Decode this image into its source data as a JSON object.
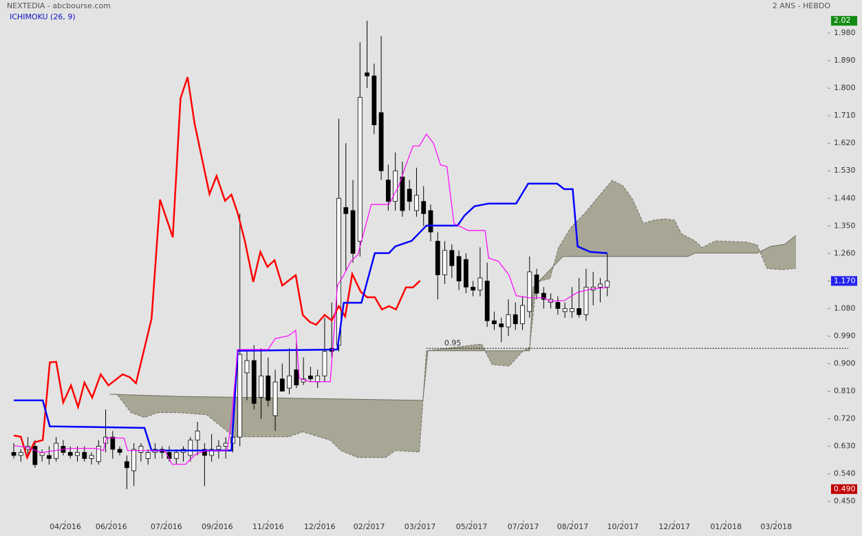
{
  "chart_data": {
    "type": "candlestick",
    "title": "NEXTEDIA - abcbourse.com",
    "subtitle": "ICHIMOKU (26, 9)",
    "period": "2 ANS - HEBDO",
    "xlim": [
      -1.95,
      114.4
    ],
    "ylim": [
      0.402,
      2.088
    ],
    "xticks": [
      {
        "value": 7.3,
        "label": "04/2016"
      },
      {
        "value": 13.8,
        "label": "06/2016"
      },
      {
        "value": 21.6,
        "label": "07/2016"
      },
      {
        "value": 28.8,
        "label": "09/2016"
      },
      {
        "value": 36.0,
        "label": "11/2016"
      },
      {
        "value": 43.3,
        "label": "12/2016"
      },
      {
        "value": 50.3,
        "label": "02/2017"
      },
      {
        "value": 57.5,
        "label": "03/2017"
      },
      {
        "value": 64.8,
        "label": "05/2017"
      },
      {
        "value": 72.1,
        "label": "07/2017"
      },
      {
        "value": 79.1,
        "label": "08/2017"
      },
      {
        "value": 86.2,
        "label": "10/2017"
      },
      {
        "value": 93.5,
        "label": "12/2017"
      },
      {
        "value": 100.8,
        "label": "01/2018"
      },
      {
        "value": 107.9,
        "label": "03/2018"
      }
    ],
    "yticks": [
      {
        "value": 0.45,
        "label": "0.450"
      },
      {
        "value": 0.54,
        "label": "0.540"
      },
      {
        "value": 0.63,
        "label": "0.630"
      },
      {
        "value": 0.72,
        "label": "0.720"
      },
      {
        "value": 0.81,
        "label": "0.810"
      },
      {
        "value": 0.9,
        "label": "0.900"
      },
      {
        "value": 0.99,
        "label": "0.990"
      },
      {
        "value": 1.08,
        "label": "1.080"
      },
      {
        "value": 1.17,
        "label": "1.170"
      },
      {
        "value": 1.26,
        "label": "1.260"
      },
      {
        "value": 1.35,
        "label": "1.350"
      },
      {
        "value": 1.44,
        "label": "1.440"
      },
      {
        "value": 1.53,
        "label": "1.530"
      },
      {
        "value": 1.62,
        "label": "1.620"
      },
      {
        "value": 1.71,
        "label": "1.710"
      },
      {
        "value": 1.8,
        "label": "1.800"
      },
      {
        "value": 1.89,
        "label": "1.890"
      },
      {
        "value": 1.98,
        "label": "1.980"
      }
    ],
    "price_markers": [
      {
        "value": 2.02,
        "label": "2.02",
        "color": "#138a13"
      },
      {
        "value": 1.17,
        "label": "1.170",
        "color": "#2222ee"
      },
      {
        "value": 0.49,
        "label": "0.490",
        "color": "#c00000"
      }
    ],
    "hline": {
      "value": 0.95,
      "label": "0.95",
      "from": 58.4
    },
    "candles": {
      "x": [
        0,
        1,
        2,
        3,
        4,
        5,
        6,
        7,
        8,
        9,
        10,
        11,
        12,
        13,
        14,
        15,
        16,
        17,
        18,
        19,
        20,
        21,
        22,
        23,
        24,
        25,
        26,
        27,
        28,
        29,
        30,
        31,
        32,
        33,
        34,
        35,
        36,
        37,
        38,
        39,
        40,
        41,
        42,
        43,
        44,
        45,
        46,
        47,
        48,
        49,
        50,
        51,
        52,
        53,
        54,
        55,
        56,
        57,
        58,
        59,
        60,
        61,
        62,
        63,
        64,
        65,
        66,
        67,
        68,
        69,
        70,
        71,
        72,
        73,
        74,
        75,
        76,
        77,
        78,
        79,
        80,
        81,
        82,
        83,
        84
      ],
      "open": [
        0.61,
        0.6,
        0.62,
        0.63,
        0.6,
        0.6,
        0.59,
        0.63,
        0.61,
        0.6,
        0.61,
        0.59,
        0.58,
        0.64,
        0.66,
        0.62,
        0.58,
        0.55,
        0.61,
        0.59,
        0.61,
        0.62,
        0.61,
        0.59,
        0.61,
        0.6,
        0.65,
        0.62,
        0.6,
        0.62,
        0.63,
        0.64,
        0.66,
        0.87,
        0.91,
        0.79,
        0.86,
        0.73,
        0.85,
        0.82,
        0.88,
        0.84,
        0.86,
        0.84,
        0.86,
        0.95,
        0.96,
        1.41,
        1.4,
        1.3,
        1.85,
        1.84,
        1.72,
        1.5,
        1.43,
        1.51,
        1.47,
        1.4,
        1.43,
        1.4,
        1.3,
        1.19,
        1.27,
        1.25,
        1.24,
        1.15,
        1.14,
        1.17,
        1.04,
        1.03,
        1.02,
        1.06,
        1.03,
        1.07,
        1.19,
        1.13,
        1.1,
        1.1,
        1.07,
        1.07,
        1.08,
        1.06,
        1.14,
        1.15,
        1.15
      ],
      "high": [
        0.64,
        0.62,
        0.66,
        0.65,
        0.62,
        0.63,
        0.66,
        0.65,
        0.63,
        0.63,
        0.63,
        0.61,
        0.65,
        0.75,
        0.68,
        0.63,
        0.6,
        0.64,
        0.64,
        0.62,
        0.64,
        0.63,
        0.63,
        0.62,
        0.63,
        0.66,
        0.71,
        0.64,
        0.67,
        0.65,
        0.66,
        0.68,
        1.39,
        0.94,
        0.96,
        0.95,
        0.92,
        0.88,
        0.9,
        0.95,
        0.97,
        0.92,
        0.89,
        0.88,
        1.05,
        1.1,
        1.7,
        1.62,
        1.5,
        1.95,
        2.02,
        1.88,
        1.97,
        1.55,
        1.59,
        1.56,
        1.5,
        1.54,
        1.48,
        1.42,
        1.33,
        1.3,
        1.29,
        1.27,
        1.26,
        1.17,
        1.28,
        1.23,
        1.07,
        1.05,
        1.11,
        1.1,
        1.12,
        1.25,
        1.21,
        1.15,
        1.13,
        1.12,
        1.1,
        1.15,
        1.18,
        1.21,
        1.2,
        1.18,
        1.26
      ],
      "low": [
        0.59,
        0.58,
        0.6,
        0.56,
        0.58,
        0.57,
        0.58,
        0.6,
        0.59,
        0.58,
        0.58,
        0.57,
        0.57,
        0.61,
        0.59,
        0.6,
        0.49,
        0.5,
        0.58,
        0.57,
        0.59,
        0.59,
        0.58,
        0.57,
        0.58,
        0.58,
        0.6,
        0.5,
        0.58,
        0.59,
        0.59,
        0.61,
        0.63,
        0.78,
        0.75,
        0.72,
        0.76,
        0.68,
        0.81,
        0.8,
        0.82,
        0.83,
        0.84,
        0.82,
        0.84,
        0.92,
        0.94,
        1.2,
        1.23,
        1.25,
        1.8,
        1.65,
        1.5,
        1.4,
        1.4,
        1.38,
        1.4,
        1.38,
        1.35,
        1.3,
        1.11,
        1.16,
        1.18,
        1.14,
        1.13,
        1.12,
        1.12,
        1.02,
        1.01,
        0.97,
        0.99,
        1.01,
        1.01,
        1.05,
        1.11,
        1.08,
        1.08,
        1.06,
        1.05,
        1.05,
        1.05,
        1.04,
        1.09,
        1.1,
        1.12
      ],
      "close": [
        0.6,
        0.61,
        0.63,
        0.57,
        0.61,
        0.59,
        0.64,
        0.61,
        0.6,
        0.61,
        0.59,
        0.6,
        0.63,
        0.66,
        0.62,
        0.61,
        0.56,
        0.62,
        0.63,
        0.61,
        0.62,
        0.61,
        0.59,
        0.61,
        0.62,
        0.65,
        0.68,
        0.6,
        0.62,
        0.63,
        0.64,
        0.66,
        0.93,
        0.91,
        0.77,
        0.86,
        0.78,
        0.84,
        0.81,
        0.86,
        0.83,
        0.85,
        0.85,
        0.86,
        0.94,
        0.94,
        1.44,
        1.39,
        1.26,
        1.77,
        1.84,
        1.68,
        1.53,
        1.43,
        1.53,
        1.4,
        1.43,
        1.45,
        1.39,
        1.33,
        1.19,
        1.27,
        1.22,
        1.17,
        1.15,
        1.14,
        1.18,
        1.04,
        1.03,
        1.02,
        1.06,
        1.03,
        1.09,
        1.2,
        1.13,
        1.11,
        1.11,
        1.08,
        1.08,
        1.08,
        1.06,
        1.15,
        1.15,
        1.16,
        1.17
      ]
    },
    "lines": [
      {
        "color": "#ff0000",
        "width": 2.5,
        "x": [
          0,
          1,
          1.9,
          2.9,
          4.1,
          5.1,
          6,
          7,
          8.1,
          9.1,
          10,
          11.1,
          12.3,
          13.4,
          15.4,
          16.4,
          17.3,
          19.5,
          20.7,
          22.5,
          23.6,
          24.6,
          25.6,
          27.7,
          28.7,
          29.9,
          30.8,
          31.7,
          32.7,
          33.9,
          34.9,
          35.9,
          36.9,
          38,
          39.9,
          40.9,
          41.9,
          42.8,
          44,
          45,
          46,
          46.9,
          47.9,
          49.1,
          50,
          51.1,
          52.1,
          53.1,
          54.1,
          55.5,
          56.5,
          57.5
        ],
        "values": [
          0.665,
          0.661,
          0.593,
          0.643,
          0.65,
          0.904,
          0.906,
          0.773,
          0.829,
          0.758,
          0.838,
          0.789,
          0.865,
          0.829,
          0.865,
          0.856,
          0.836,
          1.047,
          1.436,
          1.313,
          1.767,
          1.836,
          1.683,
          1.454,
          1.513,
          1.432,
          1.452,
          1.391,
          1.301,
          1.167,
          1.265,
          1.216,
          1.238,
          1.155,
          1.189,
          1.059,
          1.036,
          1.027,
          1.059,
          1.041,
          1.088,
          1.054,
          1.193,
          1.135,
          1.117,
          1.117,
          1.077,
          1.088,
          1.077,
          1.149,
          1.149,
          1.171
        ]
      },
      {
        "color": "#0000ff",
        "width": 2.5,
        "x": [
          0,
          4.1,
          5.1,
          18.5,
          19.5,
          30.8,
          31.7,
          45.8,
          46.7,
          49.2,
          51.1,
          53.1,
          54,
          56.3,
          58.4,
          62.8,
          63.8,
          65.2,
          67.2,
          71.1,
          72.8,
          76.9,
          77.9,
          79.1,
          79.8,
          81.6,
          84
        ],
        "values": [
          0.78,
          0.78,
          0.695,
          0.69,
          0.616,
          0.616,
          0.942,
          0.946,
          1.099,
          1.099,
          1.261,
          1.261,
          1.283,
          1.301,
          1.351,
          1.351,
          1.384,
          1.414,
          1.423,
          1.423,
          1.488,
          1.488,
          1.47,
          1.47,
          1.283,
          1.265,
          1.261
        ]
      },
      {
        "color": "#ff00ff",
        "width": 1.2,
        "x": [
          0,
          1.9,
          3.9,
          7.8,
          11.7,
          12.7,
          13.1,
          15.6,
          16.1,
          21.4,
          22.4,
          24.3,
          25.8,
          27.3,
          30.2,
          30.8,
          31.7,
          36,
          37,
          38.9,
          39.9,
          40.4,
          41.9,
          44.8,
          45.8,
          46.7,
          47.7,
          48.7,
          50.6,
          53.1,
          54.5,
          55.5,
          56.5,
          57.4,
          58.4,
          59.4,
          60.4,
          61.3,
          62.3,
          64.3,
          66.7,
          67.2,
          68.6,
          70.1,
          71.1,
          73,
          75,
          75.9,
          77.9,
          79.8,
          81.8,
          84
        ],
        "values": [
          0.632,
          0.627,
          0.609,
          0.623,
          0.623,
          0.616,
          0.657,
          0.657,
          0.616,
          0.616,
          0.571,
          0.571,
          0.605,
          0.616,
          0.616,
          0.713,
          0.946,
          0.946,
          0.982,
          0.991,
          1.009,
          0.852,
          0.841,
          0.841,
          1.155,
          1.189,
          1.234,
          1.256,
          1.42,
          1.42,
          1.481,
          1.549,
          1.611,
          1.611,
          1.65,
          1.62,
          1.549,
          1.544,
          1.358,
          1.335,
          1.335,
          1.245,
          1.234,
          1.189,
          1.122,
          1.115,
          1.115,
          1.104,
          1.106,
          1.133,
          1.144,
          1.149
        ]
      }
    ],
    "cloud": {
      "color": "#a8a796",
      "span_a": {
        "x": [
          13.6,
          14.6,
          16.6,
          18.5,
          20.4,
          23.4,
          27.3,
          31.2,
          38.9,
          40.9,
          44.8,
          46.3,
          48.7,
          52.6,
          54,
          57.4,
          58.4,
          66.2,
          67.7,
          70.1,
          72.1,
          73,
          74,
          75.9,
          77.1,
          78.9,
          80.8,
          82.8,
          84.7,
          86.2,
          87.6,
          89.1,
          90.6,
          92,
          93.5,
          94.5,
          96.4,
          97.4,
          99.3,
          103.7,
          105.2,
          106.6,
          108.6,
          110.7
        ],
        "values": [
          0.8,
          0.8,
          0.74,
          0.724,
          0.74,
          0.74,
          0.733,
          0.661,
          0.661,
          0.677,
          0.65,
          0.616,
          0.593,
          0.593,
          0.616,
          0.611,
          0.942,
          0.964,
          0.897,
          0.892,
          0.942,
          0.953,
          1.167,
          1.178,
          1.279,
          1.346,
          1.391,
          1.447,
          1.499,
          1.481,
          1.436,
          1.358,
          1.369,
          1.373,
          1.369,
          1.324,
          1.301,
          1.279,
          1.301,
          1.297,
          1.288,
          1.211,
          1.207,
          1.211
        ]
      },
      "span_b": {
        "x": [
          13.6,
          23.4,
          57.9,
          58.6,
          73,
          73.5,
          77.7,
          95.4,
          96.4,
          105.2,
          107.1,
          109.1,
          110.7
        ],
        "values": [
          0.8,
          0.793,
          0.78,
          0.942,
          0.942,
          1.149,
          1.25,
          1.25,
          1.261,
          1.261,
          1.283,
          1.29,
          1.319
        ]
      }
    }
  }
}
